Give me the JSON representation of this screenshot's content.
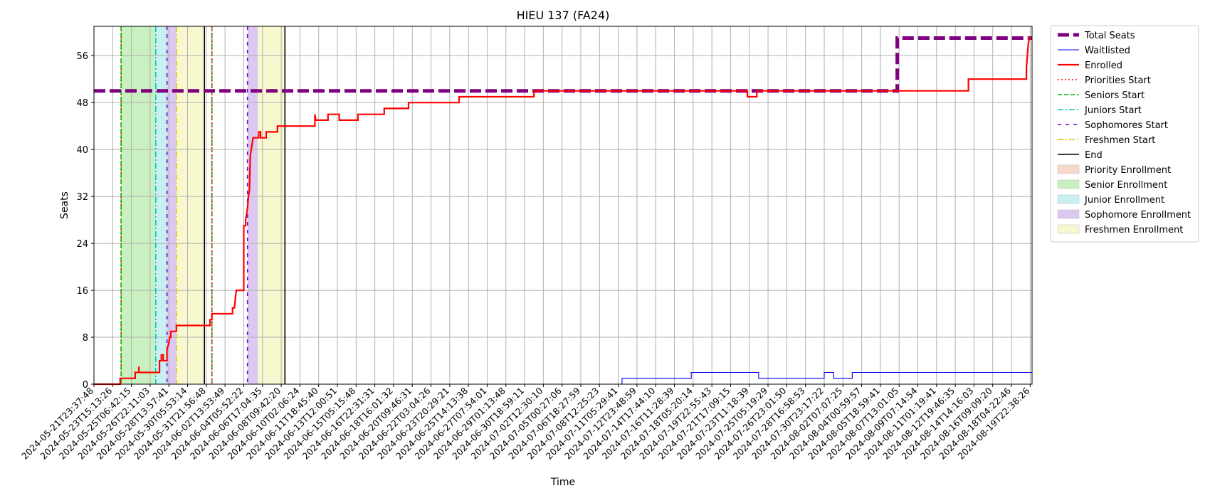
{
  "chart_data": {
    "type": "line",
    "title": "HIEU 137 (FA24)",
    "xlabel": "Time",
    "ylabel": "Seats",
    "ylim": [
      0,
      61
    ],
    "y_ticks": [
      0,
      8,
      16,
      24,
      32,
      40,
      48,
      56
    ],
    "grid": true,
    "legend_placement": "outside-right",
    "x_tick_labels": [
      "2024-05-21T23:37:48",
      "2024-05-23T15:13:26",
      "2024-05-25T06:42:15",
      "2024-05-26T22:11:03",
      "2024-05-28T13:57:41",
      "2024-05-30T05:53:14",
      "2024-05-31T21:56:48",
      "2024-06-02T13:53:49",
      "2024-06-04T05:52:22",
      "2024-06-06T17:04:35",
      "2024-06-08T09:42:20",
      "2024-06-10T02:06:24",
      "2024-06-11T18:45:40",
      "2024-06-13T12:00:51",
      "2024-06-15T05:15:48",
      "2024-06-16T22:31:31",
      "2024-06-18T16:01:32",
      "2024-06-20T09:46:31",
      "2024-06-22T03:04:26",
      "2024-06-23T20:29:21",
      "2024-06-25T14:13:38",
      "2024-06-27T07:54:01",
      "2024-06-29T01:13:48",
      "2024-06-30T18:59:11",
      "2024-07-02T12:30:10",
      "2024-07-05T00:27:06",
      "2024-07-06T18:27:59",
      "2024-07-08T12:25:23",
      "2024-07-11T05:29:41",
      "2024-07-12T23:48:59",
      "2024-07-14T17:44:10",
      "2024-07-16T11:28:39",
      "2024-07-18T05:20:14",
      "2024-07-19T22:55:43",
      "2024-07-21T17:09:15",
      "2024-07-23T11:18:39",
      "2024-07-25T05:19:29",
      "2024-07-26T23:01:50",
      "2024-07-28T16:58:53",
      "2024-07-30T23:17:22",
      "2024-08-02T07:07:25",
      "2024-08-04T00:59:57",
      "2024-08-05T18:59:41",
      "2024-08-07T13:01:05",
      "2024-08-09T07:14:54",
      "2024-08-11T01:19:41",
      "2024-08-12T19:46:35",
      "2024-08-14T14:16:03",
      "2024-08-16T09:09:20",
      "2024-08-18T04:22:46",
      "2024-08-19T22:38:26"
    ],
    "x_range": [
      0,
      50.1
    ],
    "series": [
      {
        "name": "Total Seats",
        "color": "#800080",
        "style": "dashed-thick",
        "points": [
          [
            0,
            50
          ],
          [
            42.9,
            50
          ],
          [
            42.9,
            59
          ],
          [
            50.1,
            59
          ]
        ]
      },
      {
        "name": "Waitlisted",
        "color": "#0000ff",
        "style": "solid-thin",
        "points": [
          [
            0,
            0
          ],
          [
            28.2,
            0
          ],
          [
            28.2,
            1
          ],
          [
            31.9,
            1
          ],
          [
            31.9,
            2
          ],
          [
            35.5,
            2
          ],
          [
            35.5,
            1
          ],
          [
            39,
            1
          ],
          [
            39,
            2
          ],
          [
            39.5,
            2
          ],
          [
            39.5,
            1
          ],
          [
            40.5,
            1
          ],
          [
            40.5,
            2
          ],
          [
            50.1,
            2
          ]
        ]
      },
      {
        "name": "Enrolled",
        "color": "#ff0000",
        "style": "solid-thick",
        "points": [
          [
            0,
            0
          ],
          [
            1.4,
            0
          ],
          [
            1.4,
            1
          ],
          [
            2.2,
            1
          ],
          [
            2.2,
            2
          ],
          [
            2.4,
            2
          ],
          [
            2.4,
            3
          ],
          [
            2.4,
            2
          ],
          [
            3.5,
            2
          ],
          [
            3.5,
            4
          ],
          [
            3.6,
            4
          ],
          [
            3.6,
            5
          ],
          [
            3.7,
            5
          ],
          [
            3.7,
            4
          ],
          [
            3.9,
            4
          ],
          [
            3.9,
            6
          ],
          [
            4.0,
            7
          ],
          [
            4.05,
            8
          ],
          [
            4.1,
            8
          ],
          [
            4.1,
            9
          ],
          [
            4.4,
            9
          ],
          [
            4.4,
            10
          ],
          [
            6.2,
            10
          ],
          [
            6.2,
            11
          ],
          [
            6.3,
            11
          ],
          [
            6.3,
            12
          ],
          [
            7.4,
            12
          ],
          [
            7.4,
            13
          ],
          [
            7.5,
            13
          ],
          [
            7.6,
            16
          ],
          [
            8.0,
            16
          ],
          [
            8.0,
            27
          ],
          [
            8.1,
            27
          ],
          [
            8.1,
            28
          ],
          [
            8.15,
            29
          ],
          [
            8.2,
            30
          ],
          [
            8.25,
            32
          ],
          [
            8.3,
            33
          ],
          [
            8.35,
            39
          ],
          [
            8.4,
            40
          ],
          [
            8.5,
            42
          ],
          [
            8.8,
            42
          ],
          [
            8.8,
            43
          ],
          [
            8.9,
            43
          ],
          [
            8.9,
            42
          ],
          [
            9.2,
            42
          ],
          [
            9.2,
            43
          ],
          [
            9.8,
            43
          ],
          [
            9.8,
            44
          ],
          [
            11.8,
            44
          ],
          [
            11.8,
            46
          ],
          [
            11.85,
            45
          ],
          [
            12.5,
            45
          ],
          [
            12.5,
            46
          ],
          [
            13.1,
            46
          ],
          [
            13.1,
            45
          ],
          [
            14.1,
            45
          ],
          [
            14.1,
            46
          ],
          [
            15.5,
            46
          ],
          [
            15.5,
            47
          ],
          [
            16.8,
            47
          ],
          [
            16.8,
            48
          ],
          [
            19.5,
            48
          ],
          [
            19.5,
            49
          ],
          [
            23.5,
            49
          ],
          [
            23.5,
            50
          ],
          [
            34.9,
            50
          ],
          [
            34.9,
            49
          ],
          [
            35.4,
            49
          ],
          [
            35.4,
            50
          ],
          [
            46.7,
            50
          ],
          [
            46.7,
            52
          ],
          [
            49.8,
            52
          ],
          [
            49.8,
            54
          ],
          [
            49.85,
            56
          ],
          [
            49.9,
            58
          ],
          [
            49.95,
            59
          ],
          [
            50.1,
            59
          ]
        ]
      }
    ],
    "start_lines": [
      {
        "name": "Priorities Start",
        "color": "#ff0000",
        "style": "dotted",
        "x": 1.45
      },
      {
        "name": "Seniors Start",
        "color": "#00bb00",
        "style": "dashed",
        "x": 1.45
      },
      {
        "name": "Juniors Start",
        "color": "#00c8c8",
        "style": "dashdot",
        "x": 3.3
      },
      {
        "name": "Sophomores Start",
        "color": "#6a00d8",
        "style": "loosedash",
        "x": 3.9
      },
      {
        "name": "Freshmen Start",
        "color": "#d8c800",
        "style": "dashdot",
        "x": 4.4
      },
      {
        "name": "End",
        "color": "#000000",
        "style": "solid",
        "x": 5.9
      },
      {
        "name": "Seniors Start",
        "color": "#00bb00",
        "style": "dashed",
        "x": 6.3
      },
      {
        "name": "Priorities Start",
        "color": "#ff0000",
        "style": "dotted",
        "x": 6.3
      },
      {
        "name": "Sophomores Start",
        "color": "#6a00d8",
        "style": "loosedash",
        "x": 8.2
      },
      {
        "name": "End",
        "color": "#000000",
        "style": "solid",
        "x": 10.2
      }
    ],
    "shaded_regions": [
      {
        "name": "Senior Enrollment",
        "color": "#c8f0c0",
        "x0": 1.45,
        "x1": 3.3
      },
      {
        "name": "Junior Enrollment",
        "color": "#c8f0f0",
        "x0": 3.3,
        "x1": 3.9
      },
      {
        "name": "Sophomore Enrollment",
        "color": "#dcc8f0",
        "x0": 3.9,
        "x1": 4.4
      },
      {
        "name": "Freshmen Enrollment",
        "color": "#f8f8d0",
        "x0": 4.4,
        "x1": 5.9
      },
      {
        "name": "Sophomore Enrollment",
        "color": "#dcc8f0",
        "x0": 8.2,
        "x1": 8.75
      },
      {
        "name": "Freshmen Enrollment",
        "color": "#f8f8d0",
        "x0": 8.75,
        "x1": 10.2
      }
    ],
    "legend": [
      {
        "label": "Total Seats",
        "kind": "line",
        "color": "#800080",
        "style": "dashed-thick"
      },
      {
        "label": "Waitlisted",
        "kind": "line",
        "color": "#0000ff",
        "style": "solid-thin"
      },
      {
        "label": "Enrolled",
        "kind": "line",
        "color": "#ff0000",
        "style": "solid-thick"
      },
      {
        "label": "Priorities Start",
        "kind": "line",
        "color": "#ff0000",
        "style": "dotted"
      },
      {
        "label": "Seniors Start",
        "kind": "line",
        "color": "#00bb00",
        "style": "dashed"
      },
      {
        "label": "Juniors Start",
        "kind": "line",
        "color": "#00c8c8",
        "style": "dashdot"
      },
      {
        "label": "Sophomores Start",
        "kind": "line",
        "color": "#6a00d8",
        "style": "loosedash"
      },
      {
        "label": "Freshmen Start",
        "kind": "line",
        "color": "#d8c800",
        "style": "dashdot"
      },
      {
        "label": "End",
        "kind": "line",
        "color": "#000000",
        "style": "solid"
      },
      {
        "label": "Priority Enrollment",
        "kind": "patch",
        "color": "#f8d8cc"
      },
      {
        "label": "Senior Enrollment",
        "kind": "patch",
        "color": "#c8f0c0"
      },
      {
        "label": "Junior Enrollment",
        "kind": "patch",
        "color": "#c8f0f0"
      },
      {
        "label": "Sophomore Enrollment",
        "kind": "patch",
        "color": "#dcc8f0"
      },
      {
        "label": "Freshmen Enrollment",
        "kind": "patch",
        "color": "#f8f8d0"
      }
    ]
  }
}
